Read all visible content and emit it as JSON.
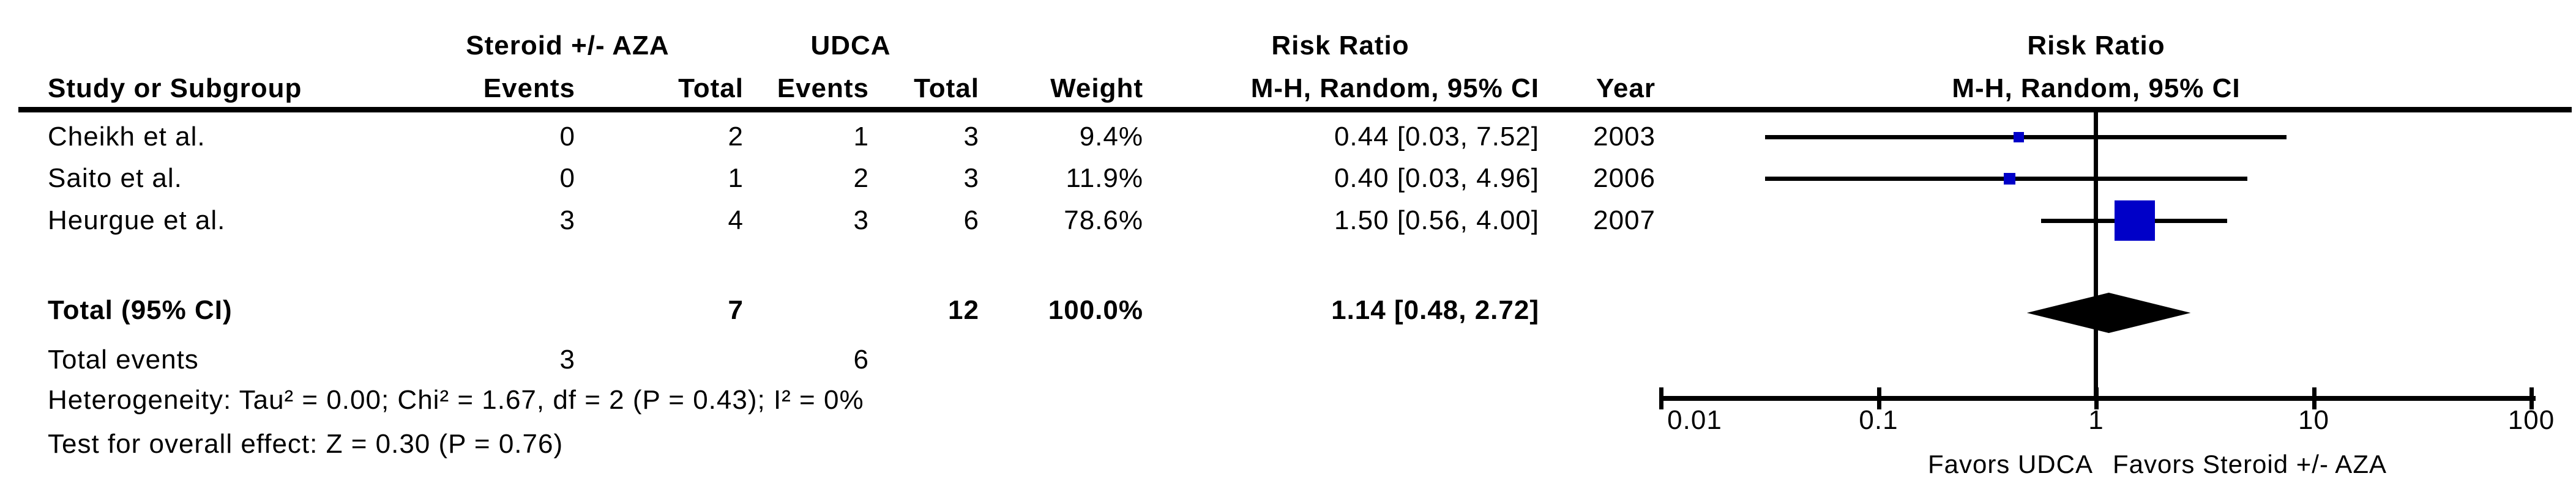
{
  "table": {
    "group_headers": {
      "treatment": "Steroid +/- AZA",
      "control": "UDCA",
      "risk_ratio": "Risk Ratio"
    },
    "col_headers": {
      "study": "Study or Subgroup",
      "events1": "Events",
      "total1": "Total",
      "events2": "Events",
      "total2": "Total",
      "weight": "Weight",
      "mh_ci": "M-H, Random, 95% CI",
      "year": "Year"
    },
    "rows": [
      {
        "study": "Cheikh et al.",
        "events1": "0",
        "total1": "2",
        "events2": "1",
        "total2": "3",
        "weight": "9.4%",
        "ci": "0.44 [0.03, 7.52]",
        "year": "2003"
      },
      {
        "study": "Saito et al.",
        "events1": "0",
        "total1": "1",
        "events2": "2",
        "total2": "3",
        "weight": "11.9%",
        "ci": "0.40 [0.03, 4.96]",
        "year": "2006"
      },
      {
        "study": "Heurgue et al.",
        "events1": "3",
        "total1": "4",
        "events2": "3",
        "total2": "6",
        "weight": "78.6%",
        "ci": "1.50 [0.56, 4.00]",
        "year": "2007"
      }
    ],
    "total_row": {
      "label": "Total (95% CI)",
      "total1": "7",
      "total2": "12",
      "weight": "100.0%",
      "ci": "1.14 [0.48, 2.72]"
    },
    "total_events_row": {
      "label": "Total events",
      "events1": "3",
      "events2": "6"
    },
    "heterogeneity": "Heterogeneity: Tau² = 0.00; Chi² = 1.67, df = 2 (P = 0.43); I² = 0%",
    "overall_effect": "Test for overall effect: Z = 0.30 (P = 0.76)"
  },
  "plot": {
    "header_line1": "Risk Ratio",
    "header_line2": "M-H, Random, 95% CI",
    "tick_labels": [
      "0.01",
      "0.1",
      "1",
      "10",
      "100"
    ],
    "favors_left": "Favors UDCA",
    "favors_right": "Favors Steroid +/- AZA",
    "colors": {
      "square": "#0000C8",
      "line": "#000000",
      "diamond": "#000000"
    }
  },
  "chart_data": {
    "type": "forest",
    "effect_measure": "Risk Ratio",
    "model": "M-H, Random, 95% CI",
    "x_scale": "log10",
    "x_ticks": [
      0.01,
      0.1,
      1,
      10,
      100
    ],
    "x_range": [
      0.01,
      100
    ],
    "studies": [
      {
        "name": "Cheikh et al.",
        "rr": 0.44,
        "ci_low": 0.03,
        "ci_high": 7.52,
        "weight_pct": 9.4,
        "year": 2003
      },
      {
        "name": "Saito et al.",
        "rr": 0.4,
        "ci_low": 0.03,
        "ci_high": 4.96,
        "weight_pct": 11.9,
        "year": 2006
      },
      {
        "name": "Heurgue et al.",
        "rr": 1.5,
        "ci_low": 0.56,
        "ci_high": 4.0,
        "weight_pct": 78.6,
        "year": 2007
      }
    ],
    "total": {
      "rr": 1.14,
      "ci_low": 0.48,
      "ci_high": 2.72,
      "weight_pct": 100.0
    }
  }
}
